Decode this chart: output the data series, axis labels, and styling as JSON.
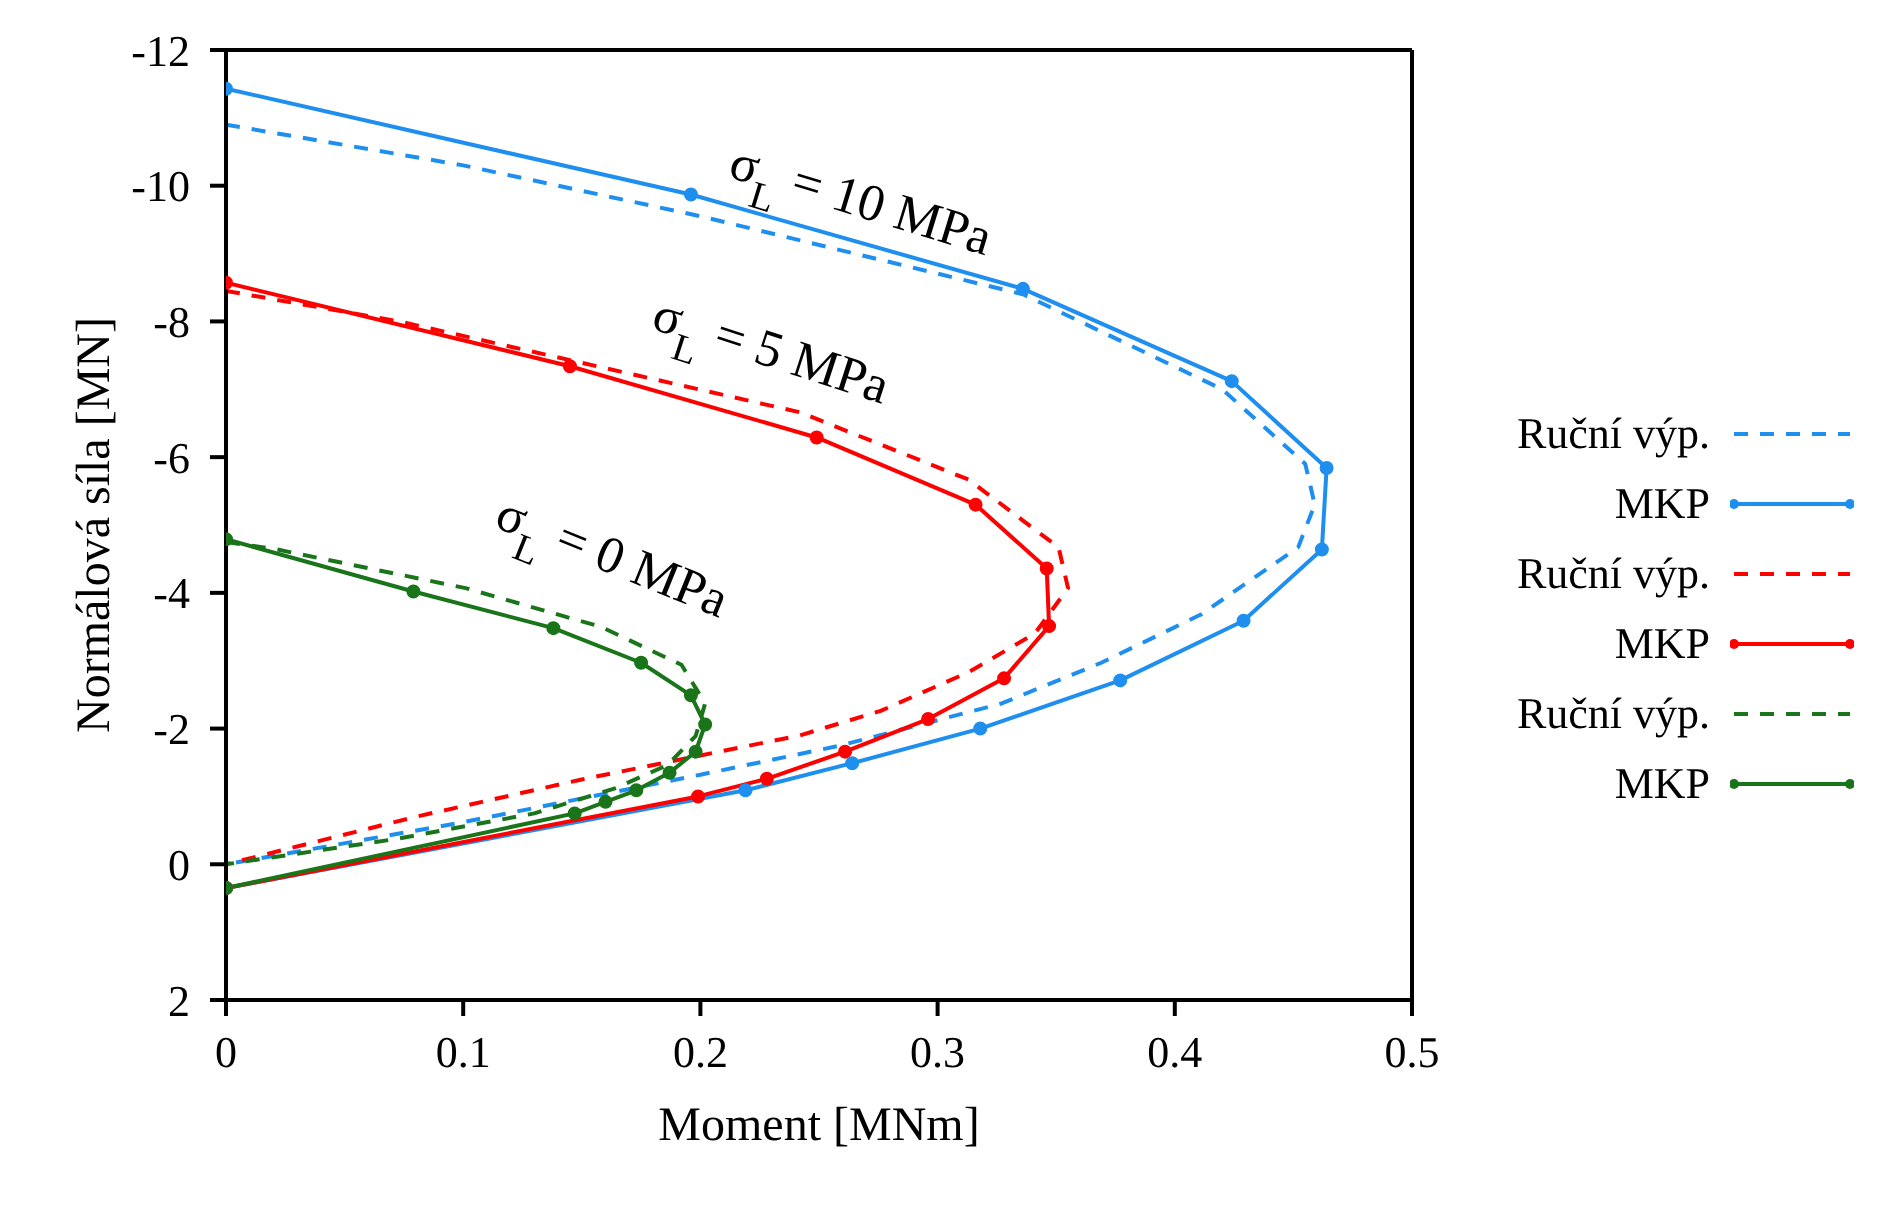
{
  "chart_data": {
    "type": "line",
    "xlabel": "Moment [MNm]",
    "ylabel": "Normálová síla [MN]",
    "xlim": [
      0,
      0.5
    ],
    "xticks": [
      0,
      0.1,
      0.2,
      0.3,
      0.4,
      0.5
    ],
    "ylim": [
      2,
      -12
    ],
    "yticks": [
      -12,
      -10,
      -8,
      -6,
      -4,
      -2,
      0,
      2
    ],
    "legend": "right",
    "annotations": [
      "σ$_{L}$ = 10 MPa",
      "σ$_{L}$ = 5 MPa",
      "σ$_{L}$ = 0 MPa"
    ],
    "series": [
      {
        "name": "Ruční výp.",
        "color": "#1f8fef",
        "line_style": "dashed",
        "marker": "none",
        "x": [
          0,
          0.1,
          0.2,
          0.336,
          0.42,
          0.455,
          0.459,
          0.452,
          0.411,
          0.369,
          0.327,
          0.259,
          0.2,
          0.1,
          0
        ],
        "values": [
          -10.9,
          -10.3,
          -9.55,
          -8.4,
          -7.0,
          -5.9,
          -5.3,
          -4.67,
          -3.68,
          -2.97,
          -2.37,
          -1.75,
          -1.32,
          -0.62,
          0
        ]
      },
      {
        "name": "MKP",
        "color": "#1f8fef",
        "line_style": "solid",
        "marker": "circle",
        "x": [
          0,
          0.196,
          0.336,
          0.424,
          0.464,
          0.462,
          0.429,
          0.377,
          0.318,
          0.264,
          0.219,
          0
        ],
        "values": [
          -11.43,
          -9.87,
          -8.48,
          -7.12,
          -5.84,
          -4.64,
          -3.59,
          -2.71,
          -2.0,
          -1.49,
          -1.09,
          0.35
        ]
      },
      {
        "name": "Ruční výp.",
        "color": "#ff0000",
        "line_style": "dashed",
        "marker": "none",
        "x": [
          0,
          0.073,
          0.242,
          0.313,
          0.351,
          0.355,
          0.341,
          0.313,
          0.276,
          0.242,
          0.15,
          0.08,
          0
        ],
        "values": [
          -8.45,
          -8.0,
          -6.66,
          -5.67,
          -4.67,
          -4.07,
          -3.4,
          -2.83,
          -2.26,
          -1.9,
          -1.25,
          -0.7,
          0
        ]
      },
      {
        "name": "MKP",
        "color": "#ff0000",
        "line_style": "solid",
        "marker": "circle",
        "x": [
          0,
          0.145,
          0.249,
          0.316,
          0.346,
          0.347,
          0.328,
          0.296,
          0.261,
          0.228,
          0.199,
          0
        ],
        "values": [
          -8.57,
          -7.34,
          -6.29,
          -5.3,
          -4.36,
          -3.51,
          -2.74,
          -2.14,
          -1.66,
          -1.26,
          -1.0,
          0.35
        ]
      },
      {
        "name": "Ruční výp.",
        "color": "#1a741a",
        "line_style": "dashed",
        "marker": "none",
        "x": [
          0,
          0.02,
          0.101,
          0.158,
          0.192,
          0.202,
          0.198,
          0.186,
          0.164,
          0.13,
          0.073,
          0
        ],
        "values": [
          -4.75,
          -4.65,
          -4.07,
          -3.5,
          -2.94,
          -2.37,
          -1.89,
          -1.46,
          -1.12,
          -0.75,
          -0.38,
          0
        ]
      },
      {
        "name": "MKP",
        "color": "#1a741a",
        "line_style": "solid",
        "marker": "circle",
        "x": [
          0,
          0.079,
          0.138,
          0.175,
          0.196,
          0.202,
          0.198,
          0.187,
          0.173,
          0.16,
          0.147,
          0
        ],
        "values": [
          -4.79,
          -4.02,
          -3.48,
          -2.97,
          -2.49,
          -2.06,
          -1.66,
          -1.35,
          -1.09,
          -0.92,
          -0.75,
          0.35
        ]
      }
    ]
  }
}
